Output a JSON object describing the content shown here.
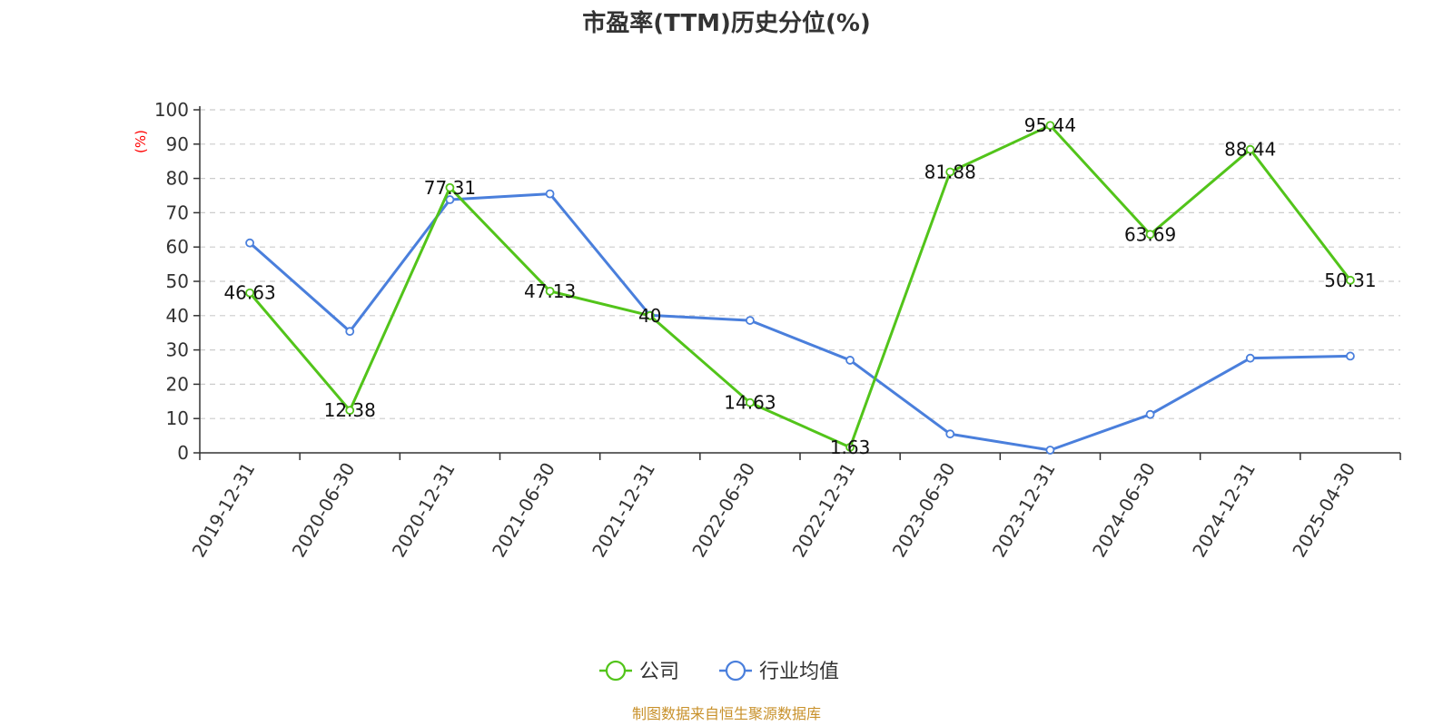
{
  "chart_data": {
    "type": "line",
    "title": "市盈率(TTM)历史分位(%)",
    "ylabel": "(%)",
    "xlabel": "",
    "ylim": [
      0,
      100
    ],
    "yticks": [
      "0",
      "10",
      "20",
      "30",
      "40",
      "50",
      "60",
      "70",
      "80",
      "90",
      "100"
    ],
    "grid": true,
    "legend_position": "bottom-center",
    "categories": [
      "2019-12-31",
      "2020-06-30",
      "2020-12-31",
      "2021-06-30",
      "2021-12-31",
      "2022-06-30",
      "2022-12-31",
      "2023-06-30",
      "2023-12-31",
      "2024-06-30",
      "2024-12-31",
      "2025-04-30"
    ],
    "series": [
      {
        "name": "公司",
        "color": "#52c41a",
        "values": [
          46.63,
          12.38,
          77.31,
          47.13,
          40,
          14.63,
          1.63,
          81.88,
          95.44,
          63.69,
          88.44,
          50.31
        ],
        "labels": [
          "46.63",
          "12.38",
          "77.31",
          "47.13",
          "40",
          "14.63",
          "1.63",
          "81.88",
          "95.44",
          "63.69",
          "88.44",
          "50.31"
        ]
      },
      {
        "name": "行业均值",
        "color": "#4a7fdc",
        "values": [
          61.2,
          35.4,
          73.8,
          75.5,
          40.1,
          38.6,
          27.0,
          5.5,
          0.8,
          11.2,
          27.6,
          28.2
        ]
      }
    ],
    "source": "制图数据来自恒生聚源数据库"
  }
}
